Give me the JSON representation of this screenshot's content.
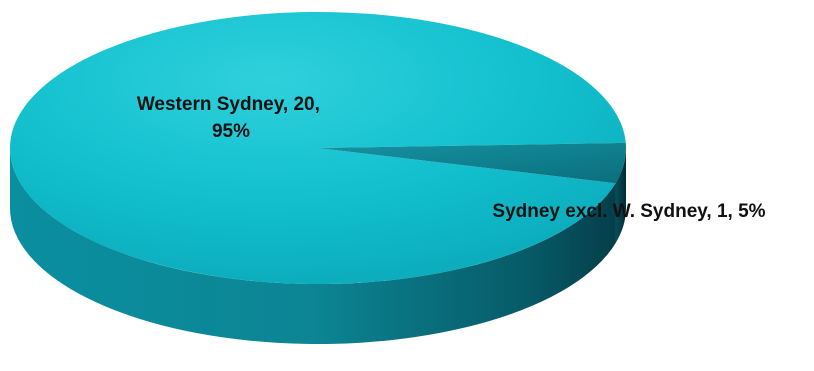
{
  "chart_data": {
    "type": "pie",
    "style": "3d",
    "title": "",
    "categories": [
      "Western Sydney",
      "Sydney excl. W. Sydney"
    ],
    "values": [
      20,
      1
    ],
    "percents": [
      95,
      5
    ],
    "labels": [
      "Western Sydney, 20, 95%",
      "Sydney excl. W. Sydney, 1, 5%"
    ],
    "label_lines": [
      [
        "Western Sydney, 20,",
        "95%"
      ],
      [
        "Sydney excl. W. Sydney, 1, 5%"
      ]
    ],
    "colors": [
      "#12c0cf",
      "#0f7f92"
    ],
    "legend": "none"
  }
}
